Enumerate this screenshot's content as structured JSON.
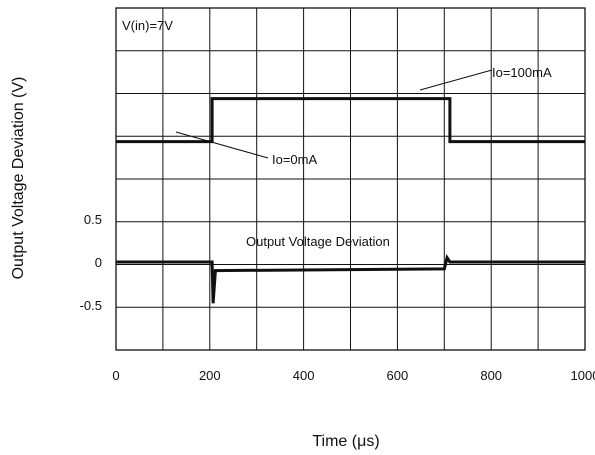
{
  "chart_data": {
    "type": "line",
    "xlabel": "Time (μs)",
    "ylabel": "Output Voltage Deviation (V)",
    "xlim": [
      0,
      1000
    ],
    "x_ticks": [
      0,
      200,
      400,
      600,
      800,
      1000
    ],
    "x_tick_labels": [
      "0",
      "200",
      "400",
      "600",
      "800",
      "1000"
    ],
    "y_tick_labels": [
      "0.5",
      "0",
      "-0.5"
    ],
    "y_ticks": [
      0.5,
      0,
      -0.5
    ],
    "ylim_voltage": [
      -1.0,
      2.0
    ],
    "grid": true,
    "series": [
      {
        "points": [
          [
            0,
            1.4
          ],
          [
            205,
            1.4
          ],
          [
            205,
            1.9
          ],
          [
            712,
            1.9
          ],
          [
            712,
            1.4
          ],
          [
            1000,
            1.4
          ]
        ]
      },
      {
        "points": [
          [
            0,
            0
          ],
          [
            205,
            0
          ],
          [
            207,
            -0.48
          ],
          [
            212,
            -0.1
          ],
          [
            700,
            -0.08
          ],
          [
            706,
            0.05
          ],
          [
            712,
            0
          ],
          [
            1000,
            0
          ]
        ]
      }
    ],
    "annotations": [
      {
        "text": "V(in)=7V"
      },
      {
        "text": "Io=100mA"
      },
      {
        "text": "Io=0mA"
      },
      {
        "text": "Output Voltage Deviation"
      }
    ]
  }
}
